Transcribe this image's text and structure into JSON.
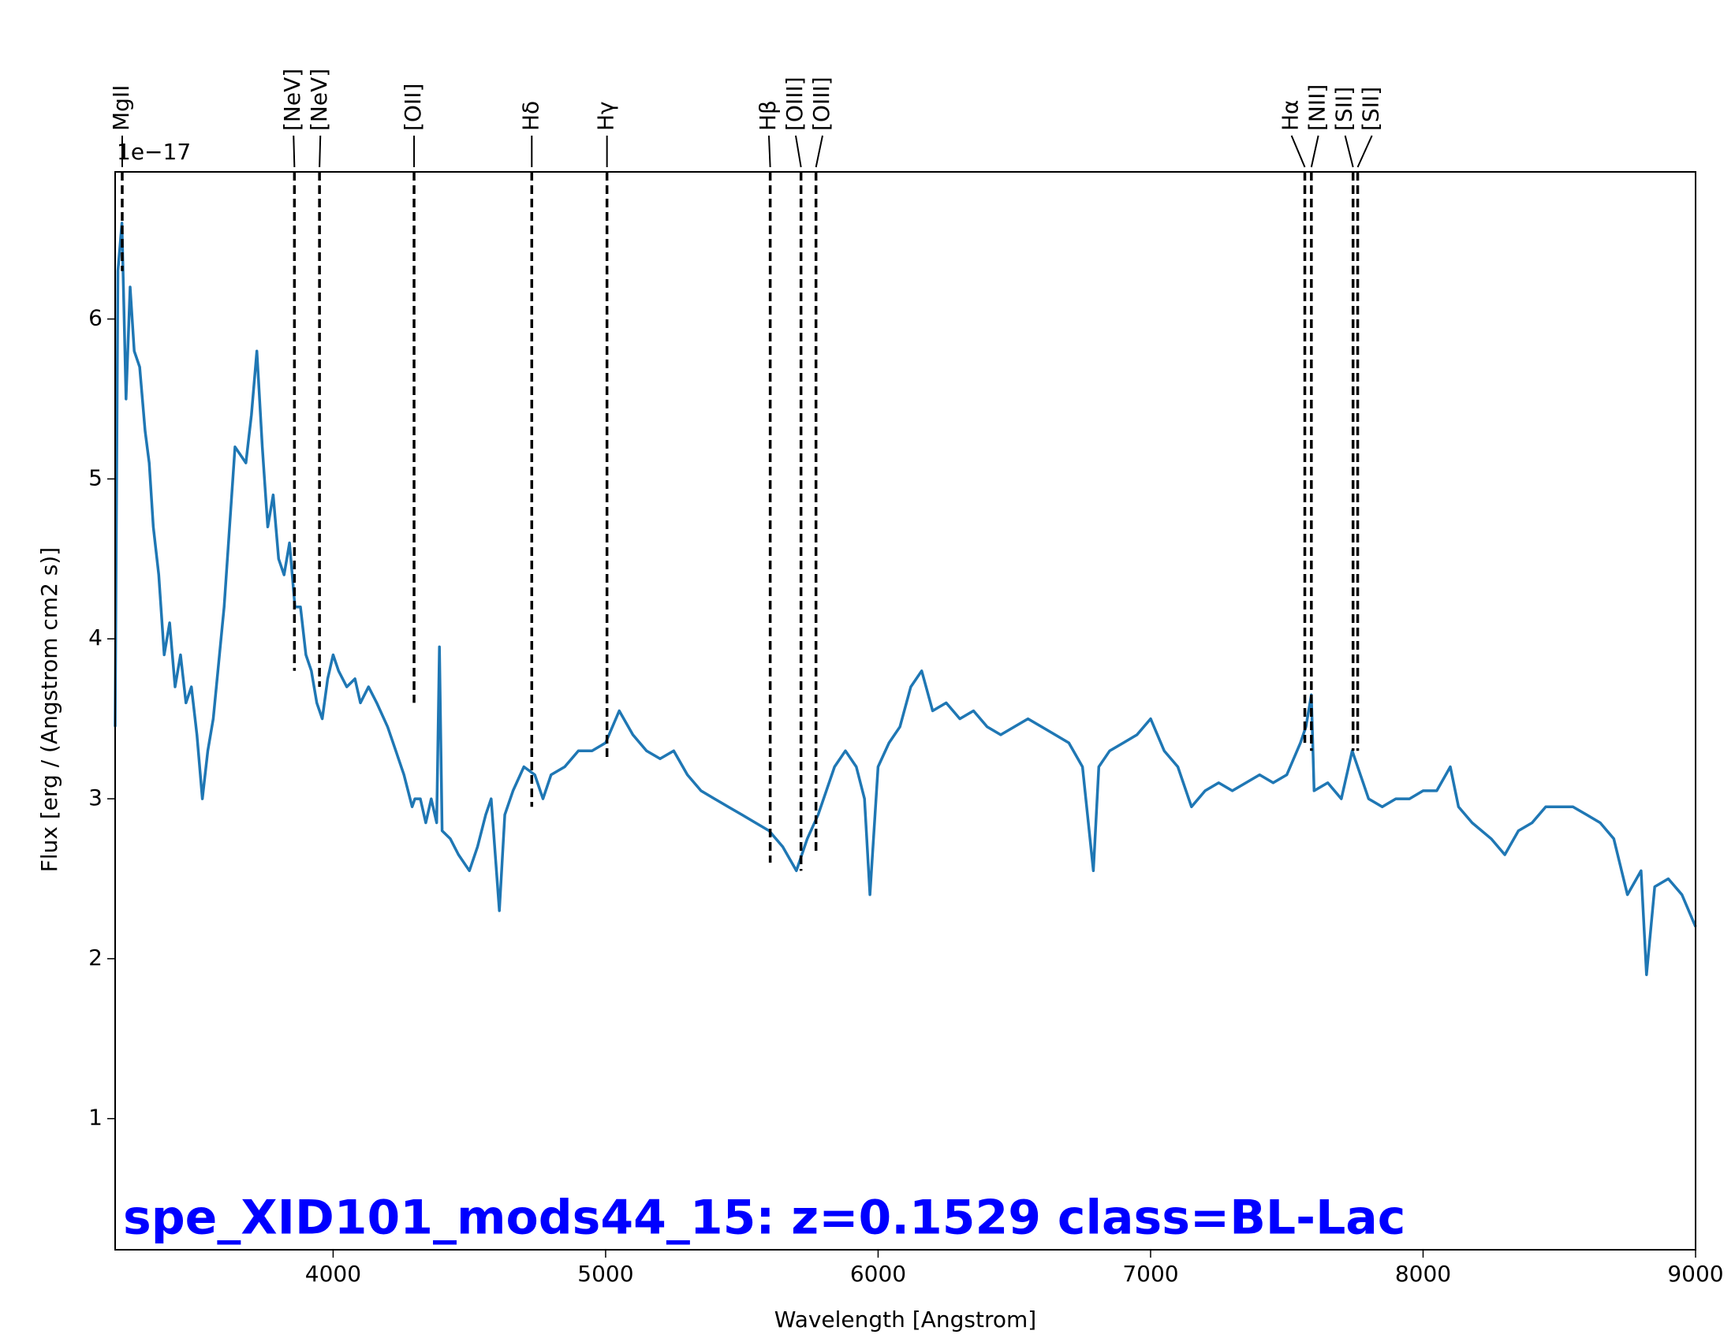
{
  "chart_data": {
    "type": "line",
    "xlabel": "Wavelength [Angstrom]",
    "ylabel": "Flux [erg / (Angstrom cm2 s)]",
    "offset_text": "1e−17",
    "annotation": "spe_XID101_mods44_15: z=0.1529 class=BL-Lac",
    "xlim": [
      3200,
      9000
    ],
    "ylim": [
      0.18,
      6.92
    ],
    "xticks": [
      4000,
      5000,
      6000,
      7000,
      8000,
      9000
    ],
    "yticks": [
      1,
      2,
      3,
      4,
      5,
      6
    ],
    "x": [
      3200,
      3210,
      3225,
      3240,
      3255,
      3270,
      3290,
      3310,
      3325,
      3340,
      3360,
      3380,
      3400,
      3420,
      3440,
      3460,
      3480,
      3500,
      3520,
      3540,
      3560,
      3600,
      3640,
      3680,
      3700,
      3720,
      3740,
      3760,
      3780,
      3800,
      3820,
      3840,
      3860,
      3880,
      3900,
      3920,
      3940,
      3960,
      3980,
      4000,
      4020,
      4050,
      4080,
      4100,
      4130,
      4160,
      4200,
      4230,
      4260,
      4290,
      4300,
      4320,
      4340,
      4360,
      4380,
      4390,
      4400,
      4430,
      4460,
      4500,
      4530,
      4560,
      4580,
      4610,
      4630,
      4660,
      4700,
      4740,
      4770,
      4800,
      4850,
      4900,
      4950,
      5000,
      5050,
      5100,
      5150,
      5200,
      5250,
      5300,
      5350,
      5400,
      5450,
      5500,
      5550,
      5600,
      5650,
      5700,
      5740,
      5780,
      5810,
      5840,
      5880,
      5920,
      5950,
      5970,
      6000,
      6040,
      6080,
      6120,
      6160,
      6200,
      6250,
      6300,
      6350,
      6400,
      6450,
      6500,
      6550,
      6600,
      6650,
      6700,
      6750,
      6790,
      6810,
      6850,
      6900,
      6950,
      7000,
      7050,
      7100,
      7150,
      7200,
      7250,
      7300,
      7350,
      7400,
      7450,
      7500,
      7550,
      7570,
      7590,
      7600,
      7650,
      7700,
      7740,
      7780,
      7800,
      7850,
      7900,
      7950,
      8000,
      8050,
      8100,
      8130,
      8180,
      8250,
      8300,
      8350,
      8400,
      8450,
      8500,
      8550,
      8600,
      8650,
      8700,
      8750,
      8800,
      8820,
      8850,
      8900,
      8950,
      9000
    ],
    "series": [
      {
        "color": "#1f77b4",
        "values": [
          3.45,
          6.3,
          6.6,
          5.5,
          6.2,
          5.8,
          5.7,
          5.3,
          5.1,
          4.7,
          4.4,
          3.9,
          4.1,
          3.7,
          3.9,
          3.6,
          3.7,
          3.4,
          3.0,
          3.3,
          3.5,
          4.2,
          5.2,
          5.1,
          5.4,
          5.8,
          5.2,
          4.7,
          4.9,
          4.5,
          4.4,
          4.6,
          4.2,
          4.2,
          3.9,
          3.8,
          3.6,
          3.5,
          3.75,
          3.9,
          3.8,
          3.7,
          3.75,
          3.6,
          3.7,
          3.6,
          3.45,
          3.3,
          3.15,
          2.95,
          3.0,
          3.0,
          2.85,
          3.0,
          2.85,
          3.95,
          2.8,
          2.75,
          2.65,
          2.55,
          2.7,
          2.9,
          3.0,
          2.3,
          2.9,
          3.05,
          3.2,
          3.15,
          3.0,
          3.15,
          3.2,
          3.3,
          3.3,
          3.35,
          3.55,
          3.4,
          3.3,
          3.25,
          3.3,
          3.15,
          3.05,
          3.0,
          2.95,
          2.9,
          2.85,
          2.8,
          2.7,
          2.55,
          2.75,
          2.9,
          3.05,
          3.2,
          3.3,
          3.2,
          3.0,
          2.4,
          3.2,
          3.35,
          3.45,
          3.7,
          3.8,
          3.55,
          3.6,
          3.5,
          3.55,
          3.45,
          3.4,
          3.45,
          3.5,
          3.45,
          3.4,
          3.35,
          3.2,
          2.55,
          3.2,
          3.3,
          3.35,
          3.4,
          3.5,
          3.3,
          3.2,
          2.95,
          3.05,
          3.1,
          3.05,
          3.1,
          3.15,
          3.1,
          3.15,
          3.35,
          3.45,
          3.65,
          3.05,
          3.1,
          3.0,
          3.3,
          3.1,
          3.0,
          2.95,
          3.0,
          3.0,
          3.05,
          3.05,
          3.2,
          2.95,
          2.85,
          2.75,
          2.65,
          2.8,
          2.85,
          2.95,
          2.95,
          2.95,
          2.9,
          2.85,
          2.75,
          2.4,
          2.55,
          1.9,
          2.45,
          2.5,
          2.4,
          2.2
        ]
      }
    ],
    "lines": [
      {
        "label": "MgII",
        "x": 3226,
        "y": 6.3
      },
      {
        "label": "[NeV]",
        "x": 3858,
        "y": 3.8
      },
      {
        "label": "[NeV]",
        "x": 3950,
        "y": 3.7
      },
      {
        "label": "[OII]",
        "x": 4297,
        "y": 3.6
      },
      {
        "label": "Hδ",
        "x": 4729,
        "y": 2.95
      },
      {
        "label": "Hγ",
        "x": 5005,
        "y": 3.25
      },
      {
        "label": "Hβ",
        "x": 5604,
        "y": 2.6
      },
      {
        "label": "[OIII]",
        "x": 5717,
        "y": 2.55
      },
      {
        "label": "[OIII]",
        "x": 5772,
        "y": 2.65
      },
      {
        "label": "Hα",
        "x": 7566,
        "y": 3.35
      },
      {
        "label": "[NII]",
        "x": 7590,
        "y": 3.3
      },
      {
        "label": "[SII]",
        "x": 7743,
        "y": 3.3
      },
      {
        "label": "[SII]",
        "x": 7760,
        "y": 3.3
      }
    ]
  }
}
